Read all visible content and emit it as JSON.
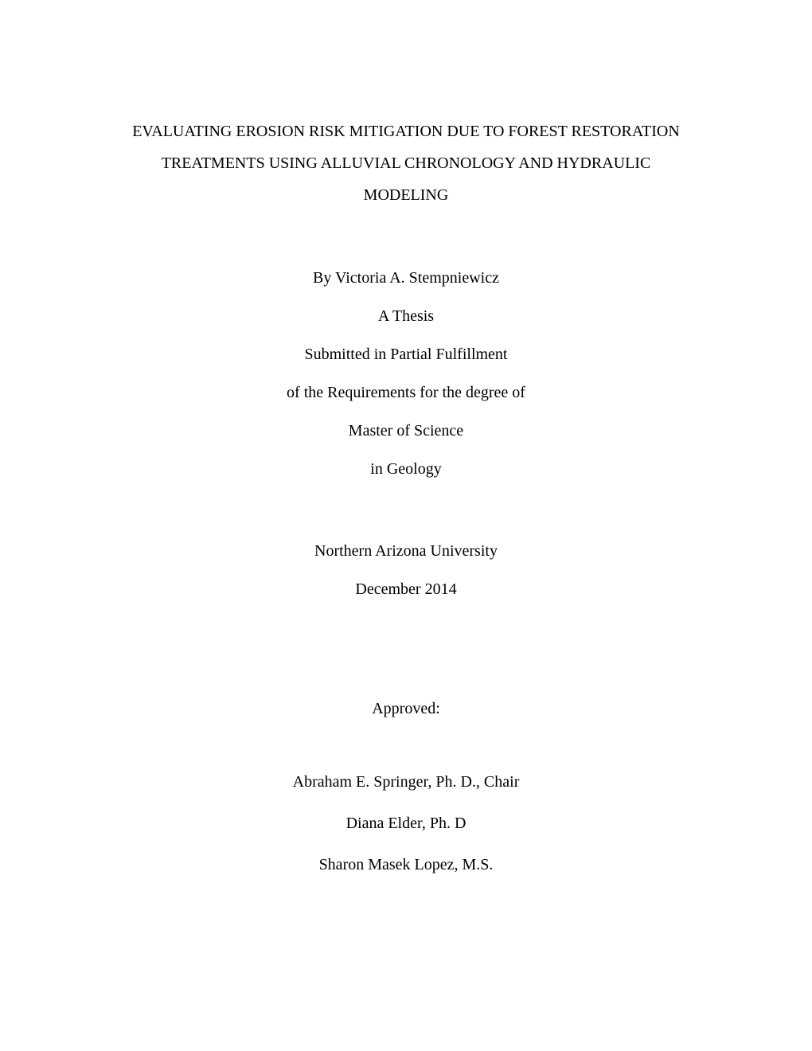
{
  "document": {
    "type": "thesis-title-page",
    "font_family": "Times New Roman",
    "font_size_pt": 12,
    "text_color": "#000000",
    "background_color": "#ffffff",
    "alignment": "center"
  },
  "title": {
    "line1": "EVALUATING EROSION RISK MITIGATION DUE TO FOREST RESTORATION",
    "line2": "TREATMENTS USING ALLUVIAL CHRONOLOGY AND HYDRAULIC",
    "line3": "MODELING"
  },
  "byline": {
    "author": "By Victoria A. Stempniewicz",
    "doc_type": "A Thesis",
    "submission": "Submitted in Partial Fulfillment",
    "requirements": "of the Requirements for the degree of",
    "degree": "Master of Science",
    "field": "in Geology"
  },
  "institution": {
    "university": "Northern Arizona University",
    "date": "December 2014"
  },
  "approval": {
    "heading": "Approved:"
  },
  "committee": {
    "chair": "Abraham E. Springer, Ph. D., Chair",
    "member1": "Diana Elder, Ph. D",
    "member2": "Sharon Masek Lopez, M.S."
  }
}
